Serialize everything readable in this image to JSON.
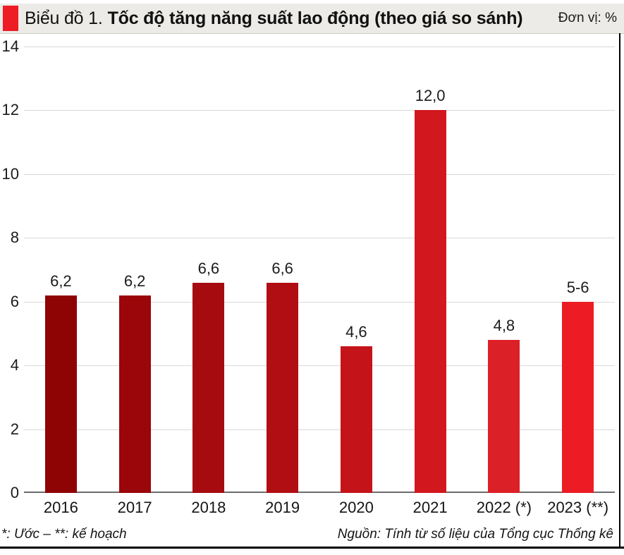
{
  "header": {
    "title_prefix": "Biểu đồ 1.",
    "title_main": "Tốc độ tăng năng suất lao động (theo giá so sánh)",
    "unit_label": "Đơn vị: %",
    "accent_color": "#ee1c25",
    "band_bg": "#ecebe7"
  },
  "chart_data": {
    "type": "bar",
    "title": "Tốc độ tăng năng suất lao động (theo giá so sánh)",
    "unit": "%",
    "categories": [
      "2016",
      "2017",
      "2018",
      "2019",
      "2020",
      "2021",
      "2022 (*)",
      "2023 (**)"
    ],
    "values": [
      6.2,
      6.2,
      6.6,
      6.6,
      4.6,
      12.0,
      4.8,
      6.0
    ],
    "value_labels": [
      "6,2",
      "6,2",
      "6,6",
      "6,6",
      "4,6",
      "12,0",
      "4,8",
      "5-6"
    ],
    "bar_colors": [
      "#8e0405",
      "#9a060a",
      "#a60b10",
      "#b10e13",
      "#c41419",
      "#d2171e",
      "#dc2027",
      "#ed1c24"
    ],
    "ylim": [
      0,
      14
    ],
    "yticks": [
      0,
      2,
      4,
      6,
      8,
      10,
      12,
      14
    ],
    "grid": true,
    "gridline_color": "#d9d9d9",
    "axis_color": "#6b6b6b",
    "legend": "none"
  },
  "footer": {
    "note_left": "*: Ước  –  **: kế hoạch",
    "source_right": "Nguồn: Tính từ số liệu của Tổng cục Thống kê"
  }
}
